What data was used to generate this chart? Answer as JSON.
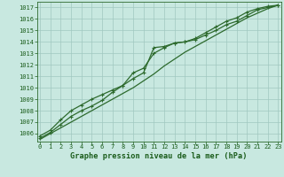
{
  "title": "Graphe pression niveau de la mer (hPa)",
  "x_values": [
    0,
    1,
    2,
    3,
    4,
    5,
    6,
    7,
    8,
    9,
    10,
    11,
    12,
    13,
    14,
    15,
    16,
    17,
    18,
    19,
    20,
    21,
    22,
    23
  ],
  "line1": [
    1005.8,
    1006.3,
    1007.2,
    1008.0,
    1008.5,
    1009.0,
    1009.4,
    1009.8,
    1010.2,
    1010.8,
    1011.3,
    1013.5,
    1013.6,
    1013.9,
    1014.0,
    1014.2,
    1014.6,
    1015.0,
    1015.5,
    1015.8,
    1016.3,
    1016.8,
    1017.0,
    1017.2
  ],
  "line2": [
    1005.6,
    1006.1,
    1006.8,
    1007.5,
    1008.0,
    1008.4,
    1008.9,
    1009.6,
    1010.2,
    1011.3,
    1011.7,
    1013.0,
    1013.5,
    1013.9,
    1014.0,
    1014.3,
    1014.8,
    1015.3,
    1015.8,
    1016.1,
    1016.6,
    1016.9,
    1017.1,
    1017.2
  ],
  "line3": [
    1005.5,
    1006.0,
    1006.5,
    1007.0,
    1007.5,
    1008.0,
    1008.5,
    1009.0,
    1009.5,
    1010.0,
    1010.6,
    1011.2,
    1011.9,
    1012.5,
    1013.1,
    1013.6,
    1014.1,
    1014.6,
    1015.1,
    1015.6,
    1016.1,
    1016.5,
    1016.9,
    1017.2
  ],
  "ylim_min": 1005.3,
  "ylim_max": 1017.5,
  "yticks": [
    1006,
    1007,
    1008,
    1009,
    1010,
    1011,
    1012,
    1013,
    1014,
    1015,
    1016,
    1017
  ],
  "xlim_min": -0.3,
  "xlim_max": 23.3,
  "xticks": [
    0,
    1,
    2,
    3,
    4,
    5,
    6,
    7,
    8,
    9,
    10,
    11,
    12,
    13,
    14,
    15,
    16,
    17,
    18,
    19,
    20,
    21,
    22,
    23
  ],
  "line_color": "#2d6a2d",
  "bg_color": "#c8e8e0",
  "grid_color": "#a0c8c0",
  "text_color": "#1a5c1a",
  "tick_fontsize": 5.0,
  "title_fontsize": 6.2,
  "marker_size": 3.0,
  "line_width": 0.9
}
